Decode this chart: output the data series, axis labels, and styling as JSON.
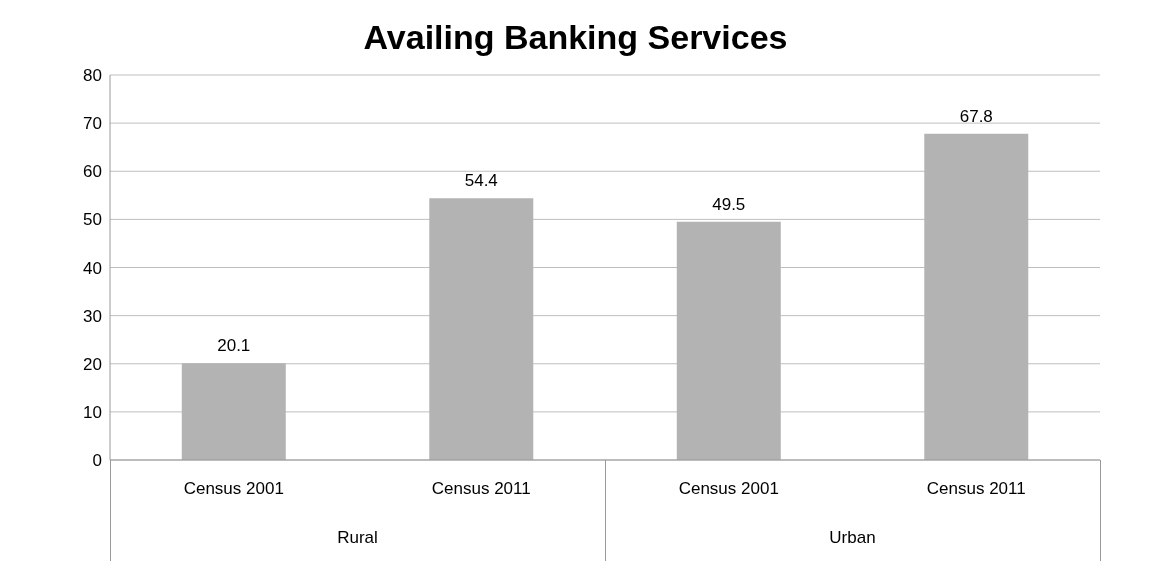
{
  "chart_data": {
    "type": "bar",
    "title": "Availing Banking Services",
    "categories": [
      "Census 2001",
      "Census 2011",
      "Census 2001",
      "Census 2011"
    ],
    "values": [
      20.1,
      54.4,
      49.5,
      67.8
    ],
    "color": "#b3b3b3",
    "ylim": [
      0,
      80
    ],
    "yticks": [
      0,
      10,
      20,
      30,
      40,
      50,
      60,
      70,
      80
    ],
    "grid": "y",
    "data_labels": true,
    "legend": false,
    "annotations": [
      "Rural",
      "Urban"
    ]
  }
}
